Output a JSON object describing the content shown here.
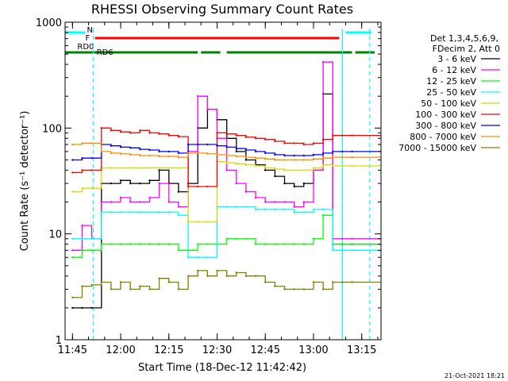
{
  "chart_data": {
    "type": "line",
    "title": "RHESSI Observing Summary Count Rates",
    "xlabel": "Start Time (18-Dec-12 11:42:42)",
    "ylabel": "Count Rate (s⁻¹ detector⁻¹)",
    "xlim": [
      "11:42:42",
      "13:21:00"
    ],
    "ylim": [
      1,
      1000
    ],
    "yscale": "log",
    "x_ticks": [
      "11:45",
      "12:00",
      "12:15",
      "12:30",
      "12:45",
      "13:00",
      "13:15"
    ],
    "y_ticks": [
      "1",
      "10",
      "100",
      "1000"
    ],
    "grid": false,
    "legend_location": "right",
    "legend_header": [
      "Det 1,3,4,5,6,9,",
      "FDecim 2, Att 0"
    ],
    "stamp": "21-Oct-2021 18:21",
    "x": [
      "11:45",
      "11:48",
      "11:51",
      "11:54",
      "11:57",
      "12:00",
      "12:03",
      "12:06",
      "12:09",
      "12:12",
      "12:15",
      "12:18",
      "12:21",
      "12:24",
      "12:27",
      "12:30",
      "12:33",
      "12:36",
      "12:39",
      "12:42",
      "12:45",
      "12:48",
      "12:51",
      "12:54",
      "12:57",
      "13:00",
      "13:03",
      "13:06",
      "13:09",
      "13:12"
    ],
    "series": [
      {
        "name": "3 - 6 keV",
        "color": "#000000",
        "values": [
          2,
          2,
          2,
          30,
          30,
          32,
          30,
          30,
          32,
          40,
          30,
          25,
          30,
          100,
          150,
          120,
          80,
          60,
          50,
          45,
          40,
          35,
          30,
          28,
          30,
          40,
          210,
          8,
          8,
          8
        ]
      },
      {
        "name": "6 - 12 keV",
        "color": "#ff00ff",
        "values": [
          7,
          12,
          9,
          20,
          20,
          22,
          20,
          20,
          22,
          30,
          20,
          18,
          60,
          200,
          150,
          80,
          40,
          30,
          25,
          22,
          20,
          20,
          20,
          18,
          20,
          40,
          420,
          9,
          9,
          9
        ]
      },
      {
        "name": "12 - 25 keV",
        "color": "#00ff00",
        "values": [
          6,
          7,
          7,
          8,
          8,
          8,
          8,
          8,
          8,
          8,
          8,
          7,
          7,
          8,
          8,
          8,
          9,
          9,
          9,
          8,
          8,
          8,
          8,
          8,
          8,
          9,
          15,
          8,
          8,
          8
        ]
      },
      {
        "name": "25 - 50 keV",
        "color": "#00ffff",
        "values": [
          9,
          9,
          9,
          16,
          16,
          16,
          16,
          16,
          16,
          16,
          16,
          15,
          6,
          6,
          6,
          18,
          18,
          18,
          18,
          17,
          17,
          17,
          17,
          16,
          16,
          17,
          17,
          7,
          7,
          7
        ]
      },
      {
        "name": "50 - 100 keV",
        "color": "#d8d800",
        "values": [
          25,
          27,
          27,
          42,
          42,
          42,
          42,
          42,
          42,
          42,
          42,
          42,
          13,
          13,
          13,
          48,
          47,
          46,
          45,
          44,
          42,
          41,
          40,
          40,
          40,
          42,
          45,
          44,
          44,
          44
        ]
      },
      {
        "name": "100 - 300 keV",
        "color": "#ff0000",
        "values": [
          38,
          40,
          40,
          100,
          95,
          92,
          90,
          95,
          90,
          88,
          85,
          83,
          28,
          28,
          28,
          90,
          88,
          85,
          82,
          80,
          78,
          75,
          72,
          72,
          70,
          72,
          78,
          85,
          85,
          85
        ]
      },
      {
        "name": "300 - 800 keV",
        "color": "#0000ff",
        "values": [
          50,
          52,
          52,
          70,
          68,
          66,
          65,
          63,
          62,
          60,
          60,
          58,
          70,
          70,
          70,
          68,
          66,
          64,
          62,
          60,
          58,
          56,
          55,
          55,
          55,
          56,
          58,
          60,
          60,
          60
        ]
      },
      {
        "name": "800 - 7000 keV",
        "color": "#ff8c00",
        "values": [
          70,
          72,
          72,
          60,
          58,
          57,
          56,
          55,
          55,
          54,
          54,
          53,
          58,
          58,
          57,
          56,
          55,
          54,
          53,
          52,
          51,
          50,
          50,
          50,
          50,
          51,
          52,
          53,
          53,
          53
        ]
      },
      {
        "name": "7000 - 15000 keV",
        "color": "#808000",
        "values": [
          2.5,
          3.2,
          3.3,
          3.5,
          3,
          3.5,
          3,
          3.2,
          3,
          3.8,
          3.5,
          3,
          4,
          4.5,
          4,
          4.5,
          4,
          4.3,
          4,
          4,
          3.5,
          3.2,
          3,
          3,
          3,
          3.5,
          3,
          3.5,
          3.5,
          3.5
        ]
      }
    ],
    "annotations": [
      {
        "label": "N",
        "color": "#00ffff",
        "spans": [
          [
            "11:42:42",
            "11:49:00"
          ],
          [
            "13:10:00",
            "13:18:00"
          ]
        ]
      },
      {
        "label": "F",
        "color": "#ff0000",
        "spans": [
          [
            "11:52:00",
            "13:08:00"
          ]
        ]
      },
      {
        "label": "RD0",
        "color": "#008000",
        "spans": [
          [
            "11:42:42",
            "12:24:00"
          ],
          [
            "12:33:00",
            "13:12:00"
          ],
          [
            "13:13:00",
            "13:19:00"
          ]
        ]
      },
      {
        "label": "RD6",
        "color": "#008000",
        "spans": [
          [
            "12:25:00",
            "12:31:00"
          ]
        ]
      }
    ],
    "vertical_markers": [
      {
        "x": "11:51:30",
        "color": "#00ffff",
        "style": "dashed"
      },
      {
        "x": "13:09:00",
        "color": "#00ffff",
        "style": "solid"
      },
      {
        "x": "13:17:30",
        "color": "#00ffff",
        "style": "dashed"
      }
    ]
  }
}
